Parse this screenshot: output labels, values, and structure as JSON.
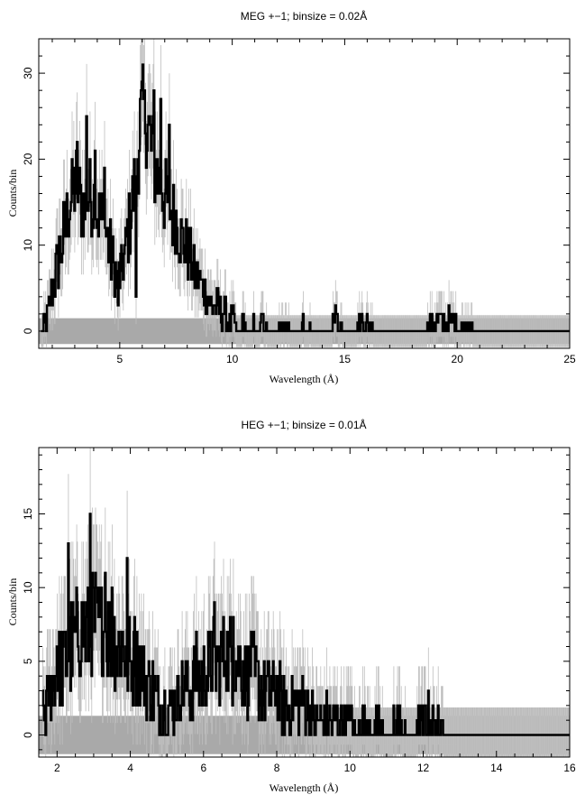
{
  "chart_data": [
    {
      "type": "line",
      "title": "MEG +−1; binsize = 0.02Å",
      "xlabel": "Wavelength (Å)",
      "ylabel": "Counts/bin",
      "xlim": [
        1.4,
        25
      ],
      "ylim": [
        -2,
        34
      ],
      "xticks_major": [
        5,
        10,
        15,
        20,
        25
      ],
      "xticks_minor_step": 1,
      "yticks_major": [
        0,
        10,
        20,
        30
      ],
      "yticks_minor_step": 2,
      "grid": false,
      "error_band": {
        "x": [
          1.4,
          25
        ],
        "y": [
          -1.5,
          1.5
        ],
        "color": "#a9a9a9"
      },
      "series": [
        {
          "color": "#000000",
          "x": [
            1.5,
            1.7,
            1.9,
            2.1,
            2.3,
            2.5,
            2.7,
            2.9,
            3.1,
            3.3,
            3.5,
            3.7,
            3.9,
            4.1,
            4.3,
            4.5,
            4.7,
            4.9,
            5.1,
            5.3,
            5.5,
            5.7,
            5.9,
            6.1,
            6.3,
            6.5,
            6.7,
            6.9,
            7.1,
            7.3,
            7.5,
            7.7,
            7.9,
            8.1,
            8.3,
            8.5,
            8.7,
            8.9,
            9.1,
            9.3,
            9.5,
            9.7,
            9.9,
            10.1,
            10.3,
            10.5,
            10.7,
            10.9,
            11.1,
            11.4,
            11.7,
            12.0,
            12.3,
            12.6,
            12.9,
            13.2,
            13.5,
            13.8,
            14.2,
            14.6,
            15.0,
            15.4,
            15.8,
            16.5,
            17.5,
            18.5,
            19.0,
            19.8,
            21.0,
            22.5,
            24.0,
            25.0
          ],
          "y": [
            0,
            1,
            3,
            6,
            8,
            11,
            14,
            16,
            17,
            15,
            14,
            16,
            15,
            13,
            12,
            10,
            8,
            6,
            7,
            10,
            14,
            17,
            24,
            26,
            23,
            20,
            18,
            17,
            15,
            14,
            13,
            11,
            10,
            9,
            7,
            6,
            5,
            4,
            3,
            3,
            2,
            2,
            1,
            1,
            0,
            1,
            0,
            1,
            0,
            1,
            0,
            0,
            1,
            0,
            0,
            1,
            0,
            0,
            0,
            1,
            0,
            0,
            1,
            0,
            0,
            0,
            1,
            1,
            0,
            0,
            0,
            0
          ],
          "spikes": [
            {
              "x": 3.1,
              "y": 22
            },
            {
              "x": 3.5,
              "y": 25
            },
            {
              "x": 3.9,
              "y": 21
            },
            {
              "x": 4.3,
              "y": 19
            },
            {
              "x": 6.1,
              "y": 28
            },
            {
              "x": 6.5,
              "y": 28
            },
            {
              "x": 6.8,
              "y": 27
            },
            {
              "x": 7.2,
              "y": 24
            },
            {
              "x": 2.3,
              "y": 11
            },
            {
              "x": 5.7,
              "y": 4
            },
            {
              "x": 4.9,
              "y": 3
            }
          ]
        }
      ]
    },
    {
      "type": "line",
      "title": "HEG +−1; binsize = 0.01Å",
      "xlabel": "Wavelength (Å)",
      "ylabel": "Counts/bin",
      "xlim": [
        1.5,
        16
      ],
      "ylim": [
        -1.5,
        19.5
      ],
      "xticks_major": [
        2,
        4,
        6,
        8,
        10,
        12,
        14,
        16
      ],
      "xticks_minor_step": 0.5,
      "yticks_major": [
        0,
        5,
        10,
        15
      ],
      "yticks_minor_step": 1,
      "grid": false,
      "error_band": {
        "x": [
          1.5,
          16
        ],
        "y": [
          -1.3,
          1.3
        ],
        "color": "#a9a9a9"
      },
      "series": [
        {
          "color": "#000000",
          "x": [
            1.6,
            1.8,
            2.0,
            2.2,
            2.4,
            2.6,
            2.8,
            3.0,
            3.2,
            3.4,
            3.6,
            3.8,
            4.0,
            4.2,
            4.4,
            4.6,
            4.8,
            5.0,
            5.2,
            5.4,
            5.6,
            5.8,
            6.0,
            6.2,
            6.4,
            6.6,
            6.8,
            7.0,
            7.2,
            7.4,
            7.6,
            7.8,
            8.0,
            8.2,
            8.4,
            8.6,
            8.8,
            9.0,
            9.2,
            9.4,
            9.6,
            9.8,
            10.0,
            10.2,
            10.4,
            10.6,
            10.8,
            11.0,
            11.3,
            11.6,
            11.9,
            12.3,
            12.6,
            13.0,
            14.0,
            15.0,
            16.0
          ],
          "y": [
            1,
            3,
            4,
            5,
            6,
            7,
            7,
            8,
            7,
            7,
            6,
            6,
            5,
            5,
            4,
            3,
            2,
            2,
            2,
            3,
            3,
            4,
            4,
            5,
            5,
            6,
            5,
            5,
            4,
            4,
            3,
            3,
            3,
            2,
            2,
            2,
            2,
            1,
            1,
            1,
            1,
            1,
            1,
            0,
            1,
            0,
            1,
            0,
            1,
            0,
            1,
            1,
            0,
            0,
            0,
            0,
            0
          ],
          "spikes": [
            {
              "x": 2.3,
              "y": 13
            },
            {
              "x": 2.9,
              "y": 15
            },
            {
              "x": 3.3,
              "y": 11
            },
            {
              "x": 3.5,
              "y": 10
            },
            {
              "x": 3.9,
              "y": 12
            },
            {
              "x": 4.1,
              "y": 8
            },
            {
              "x": 6.3,
              "y": 9
            },
            {
              "x": 6.8,
              "y": 8
            },
            {
              "x": 7.3,
              "y": 7
            },
            {
              "x": 2.0,
              "y": 6
            },
            {
              "x": 10.0,
              "y": 2
            },
            {
              "x": 12.3,
              "y": 1
            }
          ]
        }
      ]
    }
  ]
}
